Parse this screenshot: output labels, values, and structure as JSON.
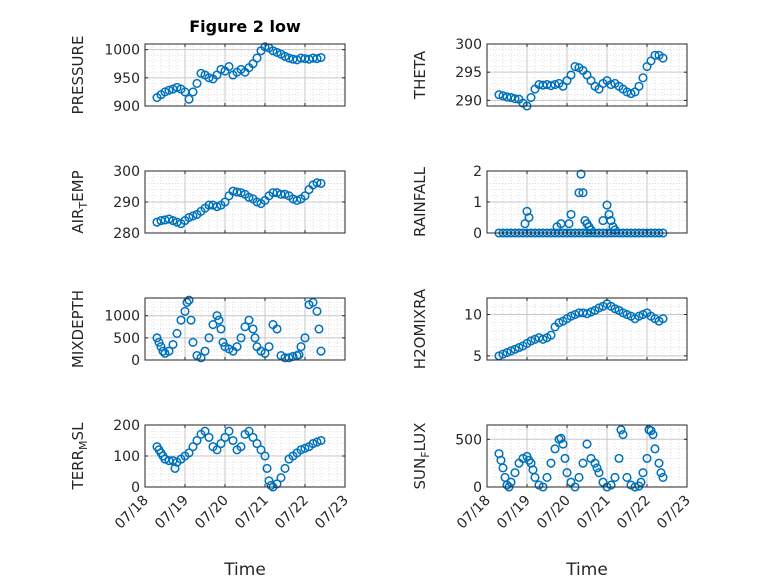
{
  "chart_data": [
    {
      "type": "scatter",
      "title": "Figure 2 low",
      "ylabel": "PRESSURE",
      "ylim": [
        900,
        1010
      ],
      "yticks": [
        900,
        950,
        1000
      ],
      "xlim": [
        0,
        5
      ],
      "xticks": [
        "07/18",
        "07/19",
        "07/20",
        "07/21",
        "07/22",
        "07/23"
      ],
      "xlabel": "",
      "grid": true,
      "series": [
        {
          "color": "#0072BD",
          "x": [
            0.3,
            0.4,
            0.5,
            0.6,
            0.7,
            0.8,
            0.9,
            1.0,
            1.1,
            1.2,
            1.3,
            1.4,
            1.5,
            1.6,
            1.7,
            1.8,
            1.9,
            2.0,
            2.1,
            2.2,
            2.3,
            2.4,
            2.5,
            2.6,
            2.7,
            2.8,
            2.9,
            3.0,
            3.1,
            3.2,
            3.3,
            3.4,
            3.5,
            3.6,
            3.7,
            3.8,
            3.9,
            4.0,
            4.1,
            4.2,
            4.3,
            4.4
          ],
          "y": [
            915,
            920,
            925,
            928,
            930,
            933,
            930,
            925,
            912,
            925,
            940,
            958,
            955,
            950,
            948,
            955,
            965,
            962,
            970,
            955,
            960,
            965,
            960,
            968,
            975,
            985,
            998,
            1005,
            1003,
            998,
            995,
            992,
            988,
            985,
            983,
            982,
            985,
            984,
            983,
            985,
            984,
            986
          ]
        }
      ]
    },
    {
      "type": "scatter",
      "title": "",
      "ylabel": "THETA",
      "ylim": [
        289,
        300
      ],
      "yticks": [
        290,
        295,
        300
      ],
      "xlim": [
        0,
        5
      ],
      "xticks": [
        "07/18",
        "07/19",
        "07/20",
        "07/21",
        "07/22",
        "07/23"
      ],
      "xlabel": "",
      "grid": true,
      "series": [
        {
          "color": "#0072BD",
          "x": [
            0.3,
            0.4,
            0.5,
            0.6,
            0.7,
            0.8,
            0.9,
            1.0,
            1.1,
            1.2,
            1.3,
            1.4,
            1.5,
            1.6,
            1.7,
            1.8,
            1.9,
            2.0,
            2.1,
            2.2,
            2.3,
            2.4,
            2.5,
            2.6,
            2.7,
            2.8,
            2.9,
            3.0,
            3.1,
            3.2,
            3.3,
            3.4,
            3.5,
            3.6,
            3.7,
            3.8,
            3.9,
            4.0,
            4.1,
            4.2,
            4.3,
            4.4
          ],
          "y": [
            291,
            290.8,
            290.6,
            290.5,
            290.3,
            290.2,
            289.5,
            289,
            290.5,
            292,
            292.8,
            292.7,
            292.8,
            292.6,
            292.8,
            293,
            292.5,
            293.5,
            294.5,
            296,
            295.8,
            295.3,
            294.5,
            293.5,
            292.5,
            292,
            293,
            293.5,
            292.8,
            293,
            292.5,
            292,
            291.5,
            291.2,
            291.5,
            292.5,
            294,
            296,
            297,
            298,
            298,
            297.5
          ]
        }
      ]
    },
    {
      "type": "scatter",
      "title": "",
      "ylabel": "AIR_TEMP",
      "ylim": [
        280,
        300
      ],
      "yticks": [
        280,
        290,
        300
      ],
      "xlim": [
        0,
        5
      ],
      "xticks": [
        "07/18",
        "07/19",
        "07/20",
        "07/21",
        "07/22",
        "07/23"
      ],
      "xlabel": "",
      "grid": true,
      "series": [
        {
          "color": "#0072BD",
          "x": [
            0.3,
            0.4,
            0.5,
            0.6,
            0.7,
            0.8,
            0.9,
            1.0,
            1.1,
            1.2,
            1.3,
            1.4,
            1.5,
            1.6,
            1.7,
            1.8,
            1.9,
            2.0,
            2.1,
            2.2,
            2.3,
            2.4,
            2.5,
            2.6,
            2.7,
            2.8,
            2.9,
            3.0,
            3.1,
            3.2,
            3.3,
            3.4,
            3.5,
            3.6,
            3.7,
            3.8,
            3.9,
            4.0,
            4.1,
            4.2,
            4.3,
            4.4
          ],
          "y": [
            283.5,
            284,
            284.2,
            284.5,
            284,
            283.5,
            283,
            284,
            285,
            285.5,
            286,
            287,
            288,
            289,
            289,
            288.5,
            289,
            290,
            292,
            293.5,
            293.2,
            293,
            292.5,
            291.5,
            291,
            290,
            289.5,
            290.5,
            292,
            293,
            293,
            292.5,
            292.5,
            292,
            291,
            290.5,
            291,
            292,
            294,
            295.5,
            296.2,
            296
          ]
        }
      ]
    },
    {
      "type": "scatter",
      "title": "",
      "ylabel": "RAINFALL",
      "ylim": [
        0,
        2
      ],
      "yticks": [
        0,
        1,
        2
      ],
      "xlim": [
        0,
        5
      ],
      "xticks": [
        "07/18",
        "07/19",
        "07/20",
        "07/21",
        "07/22",
        "07/23"
      ],
      "xlabel": "",
      "grid": true,
      "series": [
        {
          "color": "#0072BD",
          "x": [
            0.3,
            0.4,
            0.5,
            0.6,
            0.7,
            0.8,
            0.9,
            1.0,
            1.1,
            1.2,
            1.3,
            1.4,
            1.5,
            1.6,
            1.7,
            1.8,
            1.9,
            2.0,
            2.1,
            2.2,
            2.3,
            2.4,
            2.5,
            2.6,
            2.7,
            2.8,
            2.9,
            3.0,
            3.1,
            3.2,
            3.3,
            3.4,
            3.5,
            3.6,
            3.7,
            3.8,
            3.9,
            4.0,
            4.1,
            4.2,
            4.3,
            4.4,
            0.95,
            1.0,
            1.05,
            1.75,
            1.85,
            2.05,
            2.1,
            2.3,
            2.35,
            2.4,
            2.45,
            2.5,
            2.55,
            2.6,
            2.9,
            3.0,
            3.05,
            3.1,
            3.15,
            3.2
          ],
          "y": [
            0,
            0,
            0,
            0,
            0,
            0,
            0,
            0,
            0,
            0,
            0,
            0,
            0,
            0,
            0,
            0,
            0,
            0,
            0,
            0,
            0,
            0,
            0,
            0,
            0,
            0,
            0,
            0,
            0,
            0,
            0,
            0,
            0,
            0,
            0,
            0,
            0,
            0,
            0,
            0,
            0,
            0,
            0.3,
            0.7,
            0.5,
            0.2,
            0.3,
            0.3,
            0.6,
            1.3,
            1.9,
            1.3,
            0.4,
            0.3,
            0.2,
            0.1,
            0.4,
            0.9,
            0.6,
            0.4,
            0.2,
            0.1
          ]
        }
      ]
    },
    {
      "type": "scatter",
      "title": "",
      "ylabel": "MIXDEPTH",
      "ylim": [
        0,
        1400
      ],
      "yticks": [
        0,
        500,
        1000
      ],
      "xlim": [
        0,
        5
      ],
      "xticks": [
        "07/18",
        "07/19",
        "07/20",
        "07/21",
        "07/22",
        "07/23"
      ],
      "xlabel": "",
      "grid": true,
      "series": [
        {
          "color": "#0072BD",
          "x": [
            0.3,
            0.35,
            0.4,
            0.45,
            0.5,
            0.6,
            0.7,
            0.8,
            0.9,
            1.0,
            1.05,
            1.1,
            1.15,
            1.2,
            1.3,
            1.4,
            1.5,
            1.6,
            1.7,
            1.8,
            1.85,
            1.9,
            1.95,
            2.0,
            2.1,
            2.2,
            2.3,
            2.4,
            2.5,
            2.6,
            2.7,
            2.75,
            2.8,
            2.9,
            3.0,
            3.1,
            3.2,
            3.3,
            3.4,
            3.5,
            3.6,
            3.7,
            3.8,
            3.85,
            3.9,
            4.0,
            4.1,
            4.2,
            4.3,
            4.35,
            4.4
          ],
          "y": [
            500,
            400,
            300,
            200,
            150,
            200,
            350,
            600,
            900,
            1100,
            1300,
            1350,
            900,
            400,
            100,
            50,
            200,
            500,
            800,
            1000,
            900,
            700,
            400,
            300,
            250,
            200,
            300,
            500,
            750,
            900,
            700,
            500,
            300,
            200,
            150,
            300,
            800,
            700,
            100,
            50,
            50,
            80,
            100,
            120,
            300,
            500,
            1250,
            1300,
            1100,
            700,
            200
          ]
        }
      ]
    },
    {
      "type": "scatter",
      "title": "",
      "ylabel": "H2OMIXRA",
      "ylim": [
        4.5,
        12
      ],
      "yticks": [
        5,
        10
      ],
      "xlim": [
        0,
        5
      ],
      "xticks": [
        "07/18",
        "07/19",
        "07/20",
        "07/21",
        "07/22",
        "07/23"
      ],
      "xlabel": "",
      "grid": true,
      "series": [
        {
          "color": "#0072BD",
          "x": [
            0.3,
            0.4,
            0.5,
            0.6,
            0.7,
            0.8,
            0.9,
            1.0,
            1.1,
            1.2,
            1.3,
            1.4,
            1.5,
            1.6,
            1.7,
            1.8,
            1.9,
            2.0,
            2.1,
            2.2,
            2.3,
            2.4,
            2.5,
            2.6,
            2.7,
            2.8,
            2.9,
            3.0,
            3.1,
            3.2,
            3.3,
            3.4,
            3.5,
            3.6,
            3.7,
            3.8,
            3.9,
            4.0,
            4.1,
            4.2,
            4.3,
            4.4
          ],
          "y": [
            5,
            5.2,
            5.4,
            5.6,
            5.8,
            6,
            6.2,
            6.5,
            6.8,
            7,
            7.2,
            7,
            7.2,
            7.5,
            8.5,
            9,
            9.2,
            9.5,
            9.8,
            10,
            10.2,
            10.2,
            10.1,
            10.3,
            10.5,
            10.8,
            11,
            11.3,
            11,
            10.7,
            10.5,
            10.2,
            10,
            9.8,
            9.5,
            9.8,
            10,
            10.2,
            9.8,
            9.5,
            9.2,
            9.5
          ]
        }
      ]
    },
    {
      "type": "scatter",
      "title": "",
      "ylabel": "TERR_MSL",
      "ylim": [
        0,
        200
      ],
      "yticks": [
        0,
        100,
        200
      ],
      "xlim": [
        0,
        5
      ],
      "xticks": [
        "07/18",
        "07/19",
        "07/20",
        "07/21",
        "07/22",
        "07/23"
      ],
      "xlabel": "Time",
      "grid": true,
      "series": [
        {
          "color": "#0072BD",
          "x": [
            0.3,
            0.35,
            0.4,
            0.45,
            0.5,
            0.6,
            0.7,
            0.75,
            0.8,
            0.9,
            1.0,
            1.1,
            1.2,
            1.3,
            1.4,
            1.5,
            1.6,
            1.7,
            1.8,
            1.9,
            2.0,
            2.1,
            2.2,
            2.3,
            2.4,
            2.5,
            2.6,
            2.7,
            2.8,
            2.9,
            3.0,
            3.05,
            3.1,
            3.15,
            3.2,
            3.3,
            3.4,
            3.5,
            3.6,
            3.7,
            3.8,
            3.9,
            4.0,
            4.1,
            4.2,
            4.3,
            4.4
          ],
          "y": [
            130,
            120,
            110,
            100,
            90,
            85,
            85,
            60,
            80,
            90,
            100,
            110,
            130,
            150,
            170,
            180,
            160,
            130,
            120,
            140,
            160,
            180,
            150,
            120,
            130,
            170,
            180,
            160,
            140,
            120,
            100,
            60,
            20,
            5,
            0,
            10,
            30,
            60,
            90,
            100,
            110,
            120,
            125,
            130,
            140,
            145,
            150
          ]
        }
      ]
    },
    {
      "type": "scatter",
      "title": "",
      "ylabel": "SUN_FLUX",
      "ylim": [
        0,
        650
      ],
      "yticks": [
        0,
        500
      ],
      "xlim": [
        0,
        5
      ],
      "xticks": [
        "07/18",
        "07/19",
        "07/20",
        "07/21",
        "07/22",
        "07/23"
      ],
      "xlabel": "Time",
      "grid": true,
      "series": [
        {
          "color": "#0072BD",
          "x": [
            0.3,
            0.35,
            0.4,
            0.45,
            0.5,
            0.55,
            0.6,
            0.7,
            0.8,
            0.9,
            1.0,
            1.05,
            1.1,
            1.15,
            1.2,
            1.3,
            1.4,
            1.5,
            1.6,
            1.7,
            1.8,
            1.85,
            1.9,
            1.95,
            2.0,
            2.1,
            2.2,
            2.3,
            2.4,
            2.5,
            2.6,
            2.7,
            2.75,
            2.8,
            2.9,
            3.0,
            3.1,
            3.2,
            3.3,
            3.35,
            3.4,
            3.5,
            3.6,
            3.7,
            3.8,
            3.85,
            3.9,
            4.0,
            4.05,
            4.1,
            4.15,
            4.2,
            4.3,
            4.35,
            4.4
          ],
          "y": [
            350,
            280,
            200,
            100,
            20,
            0,
            50,
            150,
            250,
            300,
            320,
            280,
            250,
            180,
            100,
            20,
            0,
            100,
            250,
            400,
            500,
            510,
            450,
            300,
            150,
            50,
            0,
            100,
            250,
            450,
            300,
            250,
            200,
            150,
            50,
            0,
            20,
            100,
            300,
            600,
            550,
            100,
            20,
            0,
            10,
            50,
            150,
            300,
            600,
            590,
            550,
            400,
            250,
            150,
            100
          ]
        }
      ]
    }
  ]
}
